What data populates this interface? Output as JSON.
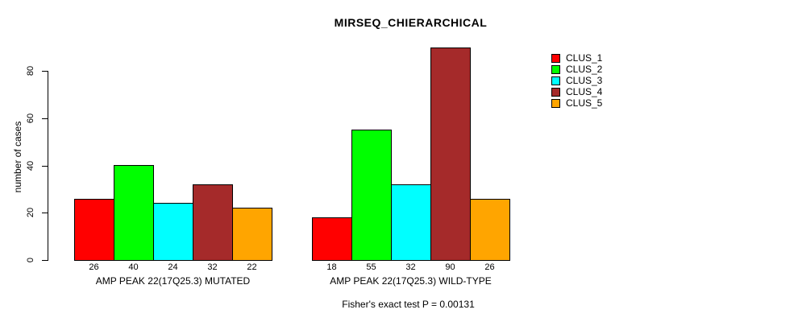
{
  "chart_data": {
    "type": "bar",
    "title": "MIRSEQ_CHIERARCHICAL",
    "ylabel": "number of cases",
    "xlabel": "",
    "subtitle": "Fisher's exact test P = 0.00131",
    "yticks": [
      0,
      20,
      40,
      60,
      80
    ],
    "ylim": [
      0,
      90
    ],
    "grid": false,
    "legend_position": "right",
    "bar_border_color": "#000000",
    "background_color": "#ffffff",
    "series": [
      {
        "name": "CLUS_1",
        "color": "#ff0000"
      },
      {
        "name": "CLUS_2",
        "color": "#00ff00"
      },
      {
        "name": "CLUS_3",
        "color": "#00ffff"
      },
      {
        "name": "CLUS_4",
        "color": "#a52a2a"
      },
      {
        "name": "CLUS_5",
        "color": "#ffa500"
      }
    ],
    "groups": [
      {
        "label": "AMP PEAK 22(17Q25.3) MUTATED",
        "values": [
          26,
          40,
          24,
          32,
          22
        ]
      },
      {
        "label": "AMP PEAK 22(17Q25.3) WILD-TYPE",
        "values": [
          18,
          55,
          32,
          90,
          26
        ]
      }
    ]
  }
}
